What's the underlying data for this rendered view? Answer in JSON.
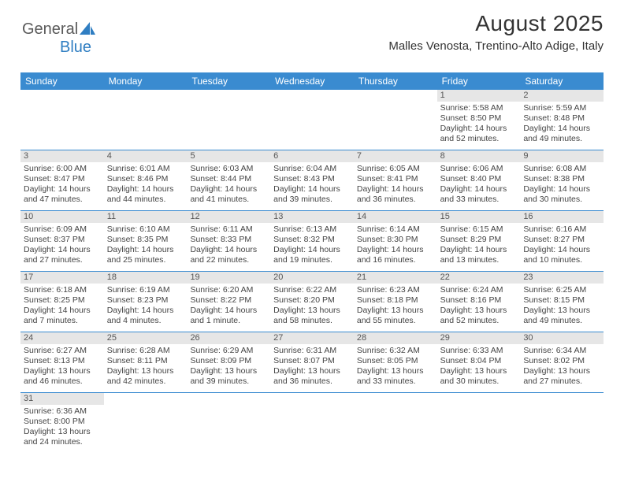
{
  "logo": {
    "text_a": "General",
    "text_b": "Blue"
  },
  "title": "August 2025",
  "subtitle": "Malles Venosta, Trentino-Alto Adige, Italy",
  "colors": {
    "header_bg": "#3a8bd0",
    "header_fg": "#ffffff",
    "daynum_bg": "#e6e6e6",
    "rule": "#3a8bd0",
    "text": "#444444",
    "logo_blue": "#2f7ec2"
  },
  "days_of_week": [
    "Sunday",
    "Monday",
    "Tuesday",
    "Wednesday",
    "Thursday",
    "Friday",
    "Saturday"
  ],
  "weeks": [
    [
      null,
      null,
      null,
      null,
      null,
      {
        "n": "1",
        "sunrise": "Sunrise: 5:58 AM",
        "sunset": "Sunset: 8:50 PM",
        "day1": "Daylight: 14 hours",
        "day2": "and 52 minutes."
      },
      {
        "n": "2",
        "sunrise": "Sunrise: 5:59 AM",
        "sunset": "Sunset: 8:48 PM",
        "day1": "Daylight: 14 hours",
        "day2": "and 49 minutes."
      }
    ],
    [
      {
        "n": "3",
        "sunrise": "Sunrise: 6:00 AM",
        "sunset": "Sunset: 8:47 PM",
        "day1": "Daylight: 14 hours",
        "day2": "and 47 minutes."
      },
      {
        "n": "4",
        "sunrise": "Sunrise: 6:01 AM",
        "sunset": "Sunset: 8:46 PM",
        "day1": "Daylight: 14 hours",
        "day2": "and 44 minutes."
      },
      {
        "n": "5",
        "sunrise": "Sunrise: 6:03 AM",
        "sunset": "Sunset: 8:44 PM",
        "day1": "Daylight: 14 hours",
        "day2": "and 41 minutes."
      },
      {
        "n": "6",
        "sunrise": "Sunrise: 6:04 AM",
        "sunset": "Sunset: 8:43 PM",
        "day1": "Daylight: 14 hours",
        "day2": "and 39 minutes."
      },
      {
        "n": "7",
        "sunrise": "Sunrise: 6:05 AM",
        "sunset": "Sunset: 8:41 PM",
        "day1": "Daylight: 14 hours",
        "day2": "and 36 minutes."
      },
      {
        "n": "8",
        "sunrise": "Sunrise: 6:06 AM",
        "sunset": "Sunset: 8:40 PM",
        "day1": "Daylight: 14 hours",
        "day2": "and 33 minutes."
      },
      {
        "n": "9",
        "sunrise": "Sunrise: 6:08 AM",
        "sunset": "Sunset: 8:38 PM",
        "day1": "Daylight: 14 hours",
        "day2": "and 30 minutes."
      }
    ],
    [
      {
        "n": "10",
        "sunrise": "Sunrise: 6:09 AM",
        "sunset": "Sunset: 8:37 PM",
        "day1": "Daylight: 14 hours",
        "day2": "and 27 minutes."
      },
      {
        "n": "11",
        "sunrise": "Sunrise: 6:10 AM",
        "sunset": "Sunset: 8:35 PM",
        "day1": "Daylight: 14 hours",
        "day2": "and 25 minutes."
      },
      {
        "n": "12",
        "sunrise": "Sunrise: 6:11 AM",
        "sunset": "Sunset: 8:33 PM",
        "day1": "Daylight: 14 hours",
        "day2": "and 22 minutes."
      },
      {
        "n": "13",
        "sunrise": "Sunrise: 6:13 AM",
        "sunset": "Sunset: 8:32 PM",
        "day1": "Daylight: 14 hours",
        "day2": "and 19 minutes."
      },
      {
        "n": "14",
        "sunrise": "Sunrise: 6:14 AM",
        "sunset": "Sunset: 8:30 PM",
        "day1": "Daylight: 14 hours",
        "day2": "and 16 minutes."
      },
      {
        "n": "15",
        "sunrise": "Sunrise: 6:15 AM",
        "sunset": "Sunset: 8:29 PM",
        "day1": "Daylight: 14 hours",
        "day2": "and 13 minutes."
      },
      {
        "n": "16",
        "sunrise": "Sunrise: 6:16 AM",
        "sunset": "Sunset: 8:27 PM",
        "day1": "Daylight: 14 hours",
        "day2": "and 10 minutes."
      }
    ],
    [
      {
        "n": "17",
        "sunrise": "Sunrise: 6:18 AM",
        "sunset": "Sunset: 8:25 PM",
        "day1": "Daylight: 14 hours",
        "day2": "and 7 minutes."
      },
      {
        "n": "18",
        "sunrise": "Sunrise: 6:19 AM",
        "sunset": "Sunset: 8:23 PM",
        "day1": "Daylight: 14 hours",
        "day2": "and 4 minutes."
      },
      {
        "n": "19",
        "sunrise": "Sunrise: 6:20 AM",
        "sunset": "Sunset: 8:22 PM",
        "day1": "Daylight: 14 hours",
        "day2": "and 1 minute."
      },
      {
        "n": "20",
        "sunrise": "Sunrise: 6:22 AM",
        "sunset": "Sunset: 8:20 PM",
        "day1": "Daylight: 13 hours",
        "day2": "and 58 minutes."
      },
      {
        "n": "21",
        "sunrise": "Sunrise: 6:23 AM",
        "sunset": "Sunset: 8:18 PM",
        "day1": "Daylight: 13 hours",
        "day2": "and 55 minutes."
      },
      {
        "n": "22",
        "sunrise": "Sunrise: 6:24 AM",
        "sunset": "Sunset: 8:16 PM",
        "day1": "Daylight: 13 hours",
        "day2": "and 52 minutes."
      },
      {
        "n": "23",
        "sunrise": "Sunrise: 6:25 AM",
        "sunset": "Sunset: 8:15 PM",
        "day1": "Daylight: 13 hours",
        "day2": "and 49 minutes."
      }
    ],
    [
      {
        "n": "24",
        "sunrise": "Sunrise: 6:27 AM",
        "sunset": "Sunset: 8:13 PM",
        "day1": "Daylight: 13 hours",
        "day2": "and 46 minutes."
      },
      {
        "n": "25",
        "sunrise": "Sunrise: 6:28 AM",
        "sunset": "Sunset: 8:11 PM",
        "day1": "Daylight: 13 hours",
        "day2": "and 42 minutes."
      },
      {
        "n": "26",
        "sunrise": "Sunrise: 6:29 AM",
        "sunset": "Sunset: 8:09 PM",
        "day1": "Daylight: 13 hours",
        "day2": "and 39 minutes."
      },
      {
        "n": "27",
        "sunrise": "Sunrise: 6:31 AM",
        "sunset": "Sunset: 8:07 PM",
        "day1": "Daylight: 13 hours",
        "day2": "and 36 minutes."
      },
      {
        "n": "28",
        "sunrise": "Sunrise: 6:32 AM",
        "sunset": "Sunset: 8:05 PM",
        "day1": "Daylight: 13 hours",
        "day2": "and 33 minutes."
      },
      {
        "n": "29",
        "sunrise": "Sunrise: 6:33 AM",
        "sunset": "Sunset: 8:04 PM",
        "day1": "Daylight: 13 hours",
        "day2": "and 30 minutes."
      },
      {
        "n": "30",
        "sunrise": "Sunrise: 6:34 AM",
        "sunset": "Sunset: 8:02 PM",
        "day1": "Daylight: 13 hours",
        "day2": "and 27 minutes."
      }
    ],
    [
      {
        "n": "31",
        "sunrise": "Sunrise: 6:36 AM",
        "sunset": "Sunset: 8:00 PM",
        "day1": "Daylight: 13 hours",
        "day2": "and 24 minutes."
      },
      null,
      null,
      null,
      null,
      null,
      null
    ]
  ]
}
